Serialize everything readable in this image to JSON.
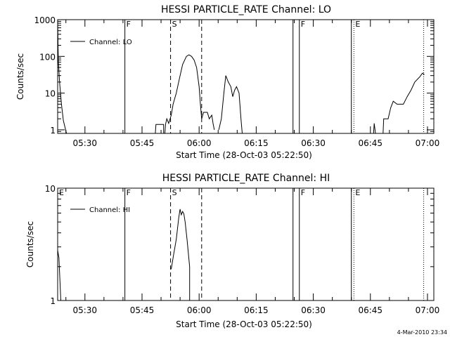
{
  "footer_timestamp": "4-Mar-2010 23:34",
  "colors": {
    "foreground": "#000000",
    "background": "#ffffff"
  },
  "chart_data": [
    {
      "type": "line",
      "title": "HESSI PARTICLE_RATE Channel: LO",
      "xlabel": "Start Time (28-Oct-03 05:22:50)",
      "ylabel": "Counts/sec",
      "y_scale": "log",
      "ylim": [
        0.8,
        1000
      ],
      "xlim": [
        "05:22:50",
        "07:01:40"
      ],
      "x_ticks": [
        "05:30",
        "05:45",
        "06:00",
        "06:15",
        "06:30",
        "06:45",
        "07:00"
      ],
      "y_ticks": [
        {
          "value": 1,
          "label": "1"
        },
        {
          "value": 10,
          "label": "10"
        },
        {
          "value": 100,
          "label": "100"
        },
        {
          "value": 1000,
          "label": "1000"
        }
      ],
      "legend": {
        "label": "Channel: LO",
        "placement": "top-left"
      },
      "markers": [
        {
          "time": "05:40:30",
          "label": "F",
          "style": "solid"
        },
        {
          "time": "05:52:30",
          "label": "S",
          "style": "dashed"
        },
        {
          "time": "06:00:40",
          "label": "",
          "style": "dashed"
        },
        {
          "time": "06:24:40",
          "label": "",
          "style": "solid"
        },
        {
          "time": "06:26:20",
          "label": "F",
          "style": "solid"
        },
        {
          "time": "06:40:00",
          "label": "",
          "style": "solid"
        },
        {
          "time": "06:40:40",
          "label": "E",
          "style": "dotted"
        },
        {
          "time": "06:59:00",
          "label": "",
          "style": "dotted"
        }
      ],
      "series": [
        {
          "segments": [
            [
              [
                "05:22:50",
                1000
              ],
              [
                "05:23:00",
                80
              ],
              [
                "05:23:20",
                20
              ],
              [
                "05:23:50",
                5
              ],
              [
                "05:24:20",
                1.8
              ],
              [
                "05:24:50",
                1.1
              ],
              [
                "05:25:10",
                0.8
              ]
            ],
            [
              [
                "05:48:30",
                0.8
              ],
              [
                "05:48:40",
                1.4
              ],
              [
                "05:50:40",
                1.4
              ],
              [
                "05:50:40",
                0.8
              ]
            ],
            [
              [
                "05:51:00",
                0.8
              ],
              [
                "05:51:10",
                1.4
              ],
              [
                "05:51:30",
                2
              ],
              [
                "05:52:00",
                1.5
              ],
              [
                "05:52:40",
                2.5
              ],
              [
                "05:53:10",
                5
              ],
              [
                "05:54:00",
                10
              ],
              [
                "05:54:50",
                25
              ],
              [
                "05:55:40",
                60
              ],
              [
                "05:56:40",
                100
              ],
              [
                "05:57:20",
                110
              ],
              [
                "05:58:00",
                100
              ],
              [
                "05:58:40",
                80
              ],
              [
                "05:59:20",
                50
              ],
              [
                "06:00:00",
                15
              ],
              [
                "06:00:20",
                5
              ],
              [
                "06:00:40",
                2
              ],
              [
                "06:01:10",
                3
              ],
              [
                "06:02:10",
                3
              ],
              [
                "06:02:40",
                2
              ],
              [
                "06:03:20",
                2.5
              ],
              [
                "06:03:40",
                1.5
              ],
              [
                "06:04:00",
                1
              ]
            ],
            [
              [
                "06:05:10",
                1
              ],
              [
                "06:05:50",
                2
              ],
              [
                "06:06:30",
                10
              ],
              [
                "06:07:00",
                30
              ],
              [
                "06:07:40",
                20
              ],
              [
                "06:08:20",
                15
              ],
              [
                "06:08:50",
                8
              ],
              [
                "06:09:20",
                12
              ],
              [
                "06:09:50",
                15
              ],
              [
                "06:10:30",
                10
              ],
              [
                "06:11:00",
                2
              ],
              [
                "06:11:20",
                0.8
              ]
            ],
            [
              [
                "06:45:50",
                0.8
              ],
              [
                "06:46:00",
                1.5
              ],
              [
                "06:46:20",
                0.8
              ]
            ],
            [
              [
                "06:48:20",
                0.8
              ],
              [
                "06:48:30",
                2
              ],
              [
                "06:49:40",
                2
              ],
              [
                "06:50:20",
                4
              ],
              [
                "06:51:00",
                6
              ],
              [
                "06:52:00",
                5
              ],
              [
                "06:53:40",
                5
              ],
              [
                "06:54:40",
                8
              ],
              [
                "06:55:40",
                12
              ],
              [
                "06:56:40",
                20
              ],
              [
                "06:58:00",
                28
              ],
              [
                "06:58:40",
                35
              ],
              [
                "06:59:10",
                32
              ]
            ]
          ]
        }
      ]
    },
    {
      "type": "line",
      "title": "HESSI PARTICLE_RATE Channel: HI",
      "xlabel": "Start Time (28-Oct-03 05:22:50)",
      "ylabel": "Counts/sec",
      "y_scale": "log",
      "ylim": [
        1,
        10
      ],
      "xlim": [
        "05:22:50",
        "07:01:40"
      ],
      "x_ticks": [
        "05:30",
        "05:45",
        "06:00",
        "06:15",
        "06:30",
        "06:45",
        "07:00"
      ],
      "y_ticks": [
        {
          "value": 1,
          "label": "1"
        },
        {
          "value": 10,
          "label": "10"
        }
      ],
      "legend": {
        "label": "Channel: HI",
        "placement": "top-left"
      },
      "markers": [
        {
          "time": "05:22:50",
          "label": "E",
          "style": "dotted"
        },
        {
          "time": "05:40:30",
          "label": "F",
          "style": "solid"
        },
        {
          "time": "05:52:30",
          "label": "S",
          "style": "dashed"
        },
        {
          "time": "06:00:40",
          "label": "",
          "style": "dashed"
        },
        {
          "time": "06:24:40",
          "label": "",
          "style": "solid"
        },
        {
          "time": "06:26:20",
          "label": "F",
          "style": "solid"
        },
        {
          "time": "06:40:00",
          "label": "",
          "style": "solid"
        },
        {
          "time": "06:40:40",
          "label": "E",
          "style": "dotted"
        },
        {
          "time": "06:59:00",
          "label": "",
          "style": "dotted"
        }
      ],
      "series": [
        {
          "segments": [
            [
              [
                "05:22:50",
                2.8
              ],
              [
                "05:23:10",
                2.4
              ],
              [
                "05:23:40",
                1
              ]
            ],
            [
              [
                "05:52:40",
                1.9
              ],
              [
                "05:53:20",
                2.6
              ],
              [
                "05:54:00",
                3.5
              ],
              [
                "05:54:40",
                5.5
              ],
              [
                "05:55:00",
                6.5
              ],
              [
                "05:55:20",
                5.8
              ],
              [
                "05:55:40",
                6.2
              ],
              [
                "05:56:00",
                5.9
              ],
              [
                "05:56:20",
                5
              ],
              [
                "05:56:50",
                3.5
              ],
              [
                "05:57:30",
                2
              ],
              [
                "05:57:30",
                1
              ]
            ]
          ]
        }
      ]
    }
  ]
}
